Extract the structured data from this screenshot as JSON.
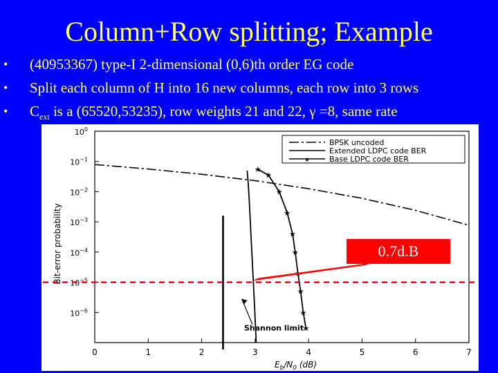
{
  "slide": {
    "title": "Column+Row splitting; Example",
    "bullet_char": "•",
    "bullets": [
      {
        "text": "(40953367) type-I 2-dimensional (0,6)th order EG code"
      },
      {
        "text": "Split each column of H into 16 new columns, each row into 3 rows"
      },
      {
        "prefix": "C",
        "subscript": "ext",
        "text": " is a (65520,53235), row weights 21 and 22, γ =8, same rate"
      }
    ],
    "callout": "0.7d.B"
  },
  "colors": {
    "background": "#0000ff",
    "text": "#ffff66",
    "marker_line": "#ff0000"
  },
  "chart_data": {
    "type": "line",
    "xlabel": "Eb/N0 (dB)",
    "xlabel_main": "E",
    "xlabel_sub1": "b",
    "xlabel_rest": "/N",
    "xlabel_sub2": "0",
    "xlabel_units": " (dB)",
    "ylabel": "Bit-error probability",
    "xlim": [
      0,
      7
    ],
    "ylim": [
      1e-07,
      1
    ],
    "yscale": "log",
    "xticks": [
      "0",
      "1",
      "2",
      "3",
      "4",
      "5",
      "6",
      "7"
    ],
    "yticks": [
      {
        "base": "10",
        "exp": "0"
      },
      {
        "base": "10",
        "exp": "−1"
      },
      {
        "base": "10",
        "exp": "−2"
      },
      {
        "base": "10",
        "exp": "−3"
      },
      {
        "base": "10",
        "exp": "−4"
      },
      {
        "base": "10",
        "exp": "−5"
      },
      {
        "base": "10",
        "exp": "−6"
      }
    ],
    "legend_position": "top-right",
    "series": [
      {
        "name": "BPSK uncoded",
        "style": "dashdot",
        "x": [
          0,
          1,
          2,
          3,
          4,
          5,
          6,
          7
        ],
        "y": [
          0.079,
          0.056,
          0.0375,
          0.023,
          0.0125,
          0.006,
          0.0024,
          0.00077
        ]
      },
      {
        "name": "Extended LDPC code BER",
        "style": "solid",
        "x": [
          2.85,
          2.87,
          2.89,
          2.91,
          2.93,
          2.95,
          2.97,
          2.99,
          3.02
        ],
        "y": [
          0.05,
          0.02,
          0.005,
          0.001,
          0.0002,
          4e-05,
          8e-06,
          1.5e-06,
          1e-07
        ]
      },
      {
        "name": "Base LDPC code BER",
        "style": "solid-star",
        "x": [
          3.05,
          3.25,
          3.45,
          3.6,
          3.7,
          3.75,
          3.8,
          3.85,
          3.9,
          3.95
        ],
        "y": [
          0.055,
          0.035,
          0.01,
          0.002,
          0.0004,
          0.0001,
          2e-05,
          5e-06,
          1e-06,
          3e-07
        ]
      }
    ],
    "shannon_limit": {
      "label": "Shannon limit",
      "x": 2.4
    },
    "reference_line": {
      "y": 1e-05
    }
  }
}
